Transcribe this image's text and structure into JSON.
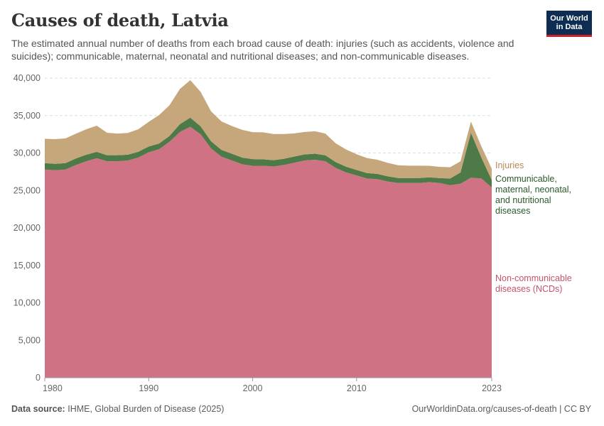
{
  "header": {
    "title": "Causes of death, Latvia",
    "subtitle": "The estimated annual number of deaths from each broad cause of death: injuries (such as accidents, violence and suicides); communicable, maternal, neonatal and nutritional diseases; and non-communicable diseases.",
    "logo_line1": "Our World",
    "logo_line2": "in Data"
  },
  "footer": {
    "source_label": "Data source:",
    "source_text": "IHME, Global Burden of Disease (2025)",
    "url_text": "OurWorldinData.org/causes-of-death | CC BY"
  },
  "chart_data": {
    "type": "area",
    "stacked": true,
    "title": "Causes of death, Latvia",
    "xlabel": "",
    "ylabel": "",
    "xlim": [
      1980,
      2023
    ],
    "ylim": [
      0,
      40000
    ],
    "y_ticks": [
      0,
      5000,
      10000,
      15000,
      20000,
      25000,
      30000,
      35000,
      40000
    ],
    "y_tick_labels": [
      "0",
      "5,000",
      "10,000",
      "15,000",
      "20,000",
      "25,000",
      "30,000",
      "35,000",
      "40,000"
    ],
    "x_ticks": [
      1980,
      1990,
      2000,
      2010,
      2023
    ],
    "x_tick_labels": [
      "1980",
      "1990",
      "2000",
      "2010",
      "2023"
    ],
    "grid": true,
    "x": [
      1980,
      1981,
      1982,
      1983,
      1984,
      1985,
      1986,
      1987,
      1988,
      1989,
      1990,
      1991,
      1992,
      1993,
      1994,
      1995,
      1996,
      1997,
      1998,
      1999,
      2000,
      2001,
      2002,
      2003,
      2004,
      2005,
      2006,
      2007,
      2008,
      2009,
      2010,
      2011,
      2012,
      2013,
      2014,
      2015,
      2016,
      2017,
      2018,
      2019,
      2020,
      2021,
      2022,
      2023
    ],
    "series": [
      {
        "name": "Non-communicable diseases (NCDs)",
        "label_lines": [
          "Non-communicable",
          "diseases (NCDs)"
        ],
        "color": "#cf7283",
        "label_color": "#c4536c",
        "values": [
          27800,
          27700,
          27800,
          28400,
          28900,
          29300,
          28900,
          28900,
          29000,
          29400,
          30100,
          30500,
          31500,
          32800,
          33500,
          32500,
          30600,
          29500,
          29000,
          28500,
          28300,
          28300,
          28200,
          28400,
          28700,
          29000,
          29100,
          28900,
          28000,
          27400,
          27000,
          26600,
          26500,
          26200,
          26000,
          26000,
          26000,
          26100,
          26000,
          25700,
          25900,
          26700,
          26600,
          25400
        ]
      },
      {
        "name": "Communicable, maternal, neonatal, and nutritional diseases",
        "label_lines": [
          "Communicable,",
          "maternal, neonatal,",
          "and nutritional",
          "diseases"
        ],
        "color": "#4d7a46",
        "label_color": "#2a5a2a",
        "values": [
          850,
          850,
          850,
          880,
          880,
          850,
          800,
          800,
          780,
          770,
          760,
          770,
          780,
          1050,
          1230,
          1050,
          960,
          920,
          900,
          890,
          880,
          860,
          840,
          830,
          820,
          810,
          800,
          790,
          780,
          760,
          740,
          720,
          700,
          680,
          660,
          660,
          660,
          650,
          650,
          900,
          1500,
          6000,
          2800,
          1000
        ]
      },
      {
        "name": "Injuries",
        "label_lines": [
          "Injuries"
        ],
        "color": "#c6a77b",
        "label_color": "#b58a55",
        "values": [
          3250,
          3300,
          3300,
          3300,
          3400,
          3500,
          3000,
          2900,
          2900,
          3000,
          3300,
          3800,
          4100,
          4700,
          5000,
          4600,
          4000,
          3800,
          3700,
          3700,
          3600,
          3600,
          3500,
          3300,
          3100,
          3000,
          3000,
          2900,
          2500,
          2300,
          2100,
          2000,
          1900,
          1800,
          1700,
          1650,
          1650,
          1550,
          1500,
          1500,
          1500,
          1500,
          1500,
          1500
        ]
      }
    ]
  }
}
